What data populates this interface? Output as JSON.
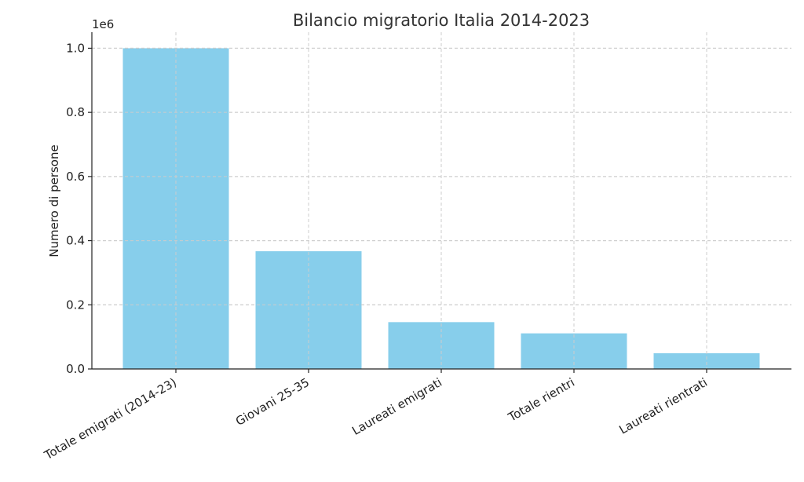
{
  "chart_data": {
    "type": "bar",
    "title": "Bilancio migratorio Italia 2014-2023",
    "xlabel": "",
    "ylabel": "Numero di persone",
    "y_scale_label": "1e6",
    "categories": [
      "Totale emigrati (2014-23)",
      "Giovani 25-35",
      "Laureati emigrati",
      "Totale rientri",
      "Laureati rientrati"
    ],
    "values": [
      1000000,
      367000,
      146000,
      111000,
      49000
    ],
    "ylim": [
      0,
      1050000
    ],
    "yticks": [
      0,
      200000,
      400000,
      600000,
      800000,
      1000000
    ],
    "ytick_labels": [
      "0.0",
      "0.2",
      "0.4",
      "0.6",
      "0.8",
      "1.0"
    ],
    "grid": true,
    "colors": {
      "bar": "#87CEEB"
    }
  }
}
